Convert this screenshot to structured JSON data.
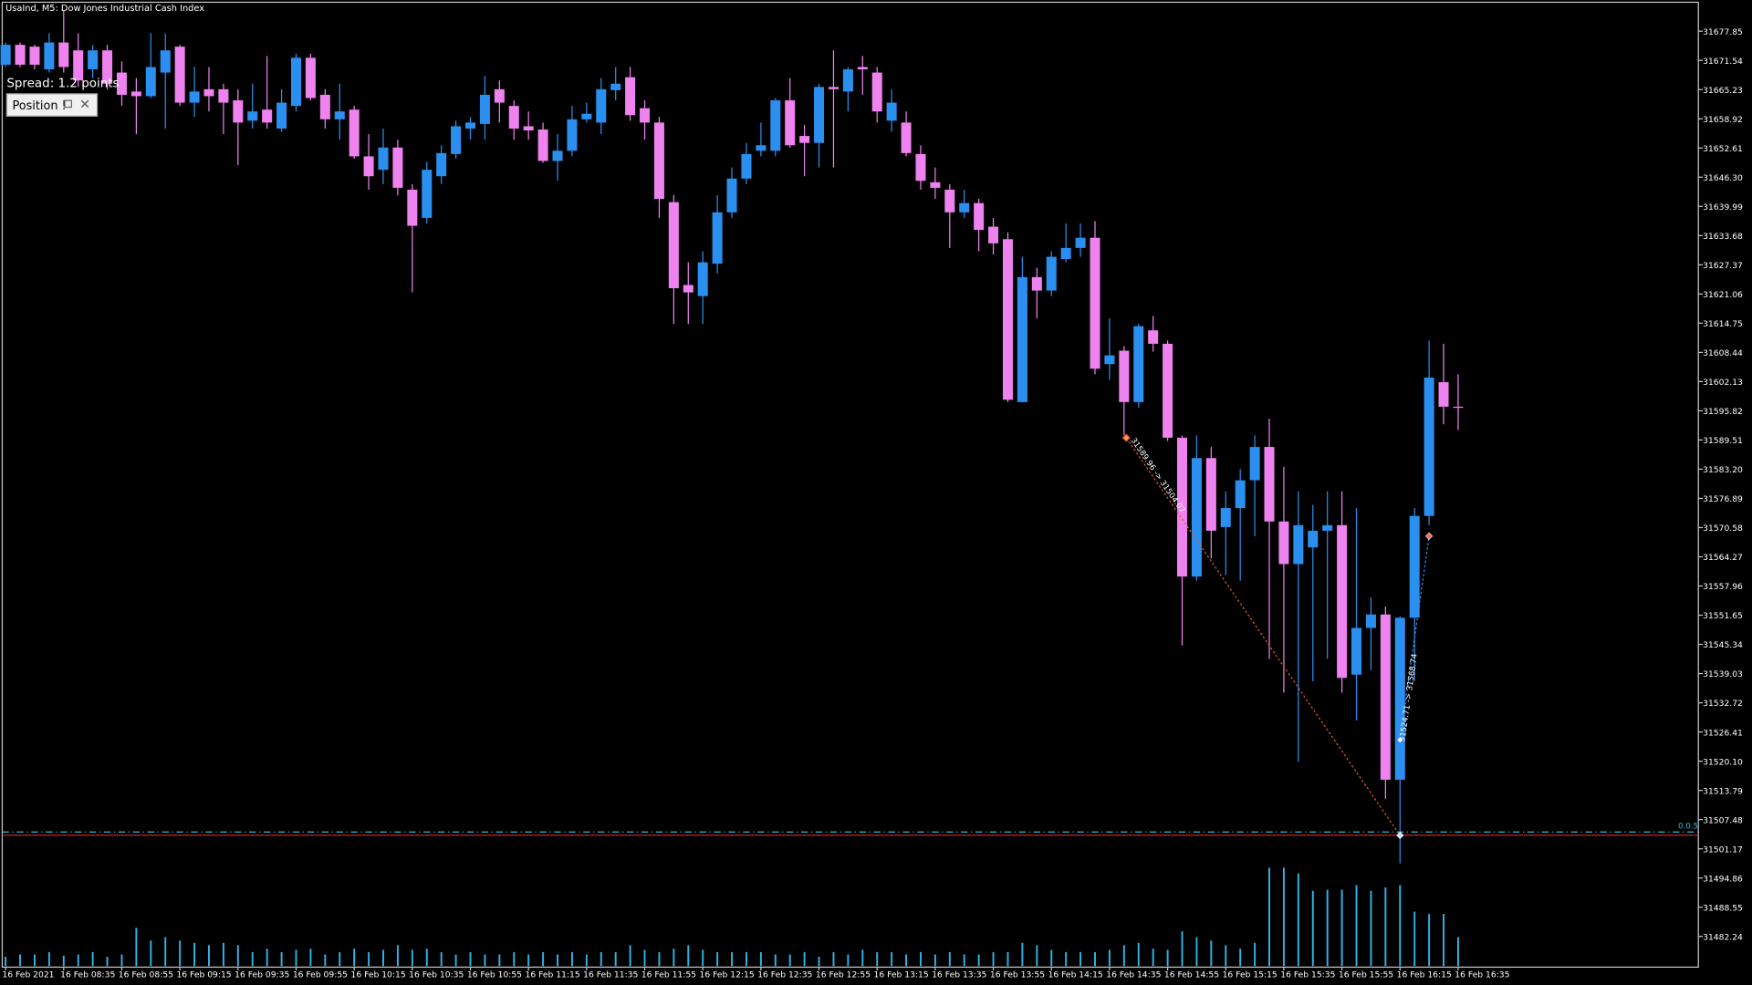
{
  "chart_data": {
    "type": "candlestick",
    "title": "UsaInd, M5:  Dow Jones Industrial Cash Index",
    "spread": "Spread: 1.2 points",
    "position_button": "Position !",
    "bull_color": "#2b8ff0",
    "bear_color": "#ee82ee",
    "volume_color": "#2fb2e6",
    "categories": [
      "16 Feb 2021",
      null,
      null,
      null,
      "16 Feb 08:35",
      null,
      null,
      null,
      "16 Feb 08:55",
      null,
      null,
      null,
      "16 Feb 09:15",
      null,
      null,
      null,
      "16 Feb 09:35",
      null,
      null,
      null,
      "16 Feb 09:55",
      null,
      null,
      null,
      "16 Feb 10:15",
      null,
      null,
      null,
      "16 Feb 10:35",
      null,
      null,
      null,
      "16 Feb 10:55",
      null,
      null,
      null,
      "16 Feb 11:15",
      null,
      null,
      null,
      "16 Feb 11:35",
      null,
      null,
      null,
      "16 Feb 11:55",
      null,
      null,
      null,
      "16 Feb 12:15",
      null,
      null,
      null,
      "16 Feb 12:35",
      null,
      null,
      null,
      "16 Feb 12:55",
      null,
      null,
      null,
      "16 Feb 13:15",
      null,
      null,
      null,
      "16 Feb 13:35",
      null,
      null,
      null,
      "16 Feb 13:55",
      null,
      null,
      null,
      "16 Feb 14:15",
      null,
      null,
      null,
      "16 Feb 14:35",
      null,
      null,
      null,
      "16 Feb 14:55",
      null,
      null,
      null,
      "16 Feb 15:15",
      null,
      null,
      null,
      "16 Feb 15:35",
      null,
      null,
      null,
      "16 Feb 15:55",
      null,
      null,
      null,
      "16 Feb 16:15",
      null,
      null,
      null,
      "16 Feb 16:35"
    ],
    "open": [
      31670.6,
      31674.9,
      31674.5,
      31669.6,
      31675.4,
      31673.7,
      31669.6,
      31673.7,
      31668.9,
      31664.8,
      31663.8,
      31668.9,
      31674.5,
      31662.4,
      31665.3,
      31665.3,
      31662.9,
      31658.5,
      31660.9,
      31656.8,
      31661.7,
      31672.1,
      31664.1,
      31658.8,
      31660.9,
      31650.8,
      31647.9,
      31652.7,
      31643.6,
      31637.5,
      31646.5,
      31651.3,
      31656.8,
      31657.8,
      31665.3,
      31661.7,
      31657.3,
      31656.6,
      31649.8,
      31652.0,
      31658.8,
      31658.1,
      31665.1,
      31667.9,
      31661.2,
      31658.1,
      31640.9,
      31623.0,
      31620.6,
      31627.6,
      31638.7,
      31646.0,
      31652.0,
      31652.0,
      31662.9,
      31655.2,
      31653.7,
      31665.8,
      31664.8,
      31670.1,
      31668.9,
      31658.5,
      31658.1,
      31651.3,
      31645.2,
      31643.6,
      31638.7,
      31640.7,
      31635.6,
      31632.9,
      31597.7,
      31624.7,
      31621.8,
      31628.6,
      31631.0,
      31633.2,
      31605.9,
      31608.8,
      31597.7,
      31613.2,
      31610.3,
      31590.0,
      31560.0,
      31585.6,
      31570.7,
      31574.8,
      31580.8,
      31588.0,
      31571.9,
      31562.7,
      31566.3,
      31569.9,
      31571.1,
      31538.8,
      31548.9,
      31551.8,
      31516.1,
      31551.1,
      31573.1,
      31602.0,
      31596.7
    ],
    "high": [
      31675.4,
      31675.4,
      31674.9,
      31677.4,
      31682.2,
      31677.4,
      31674.9,
      31674.9,
      31671.3,
      31667.7,
      31677.4,
      31677.4,
      31674.9,
      31670.1,
      31670.1,
      31666.5,
      31665.3,
      31666.5,
      31672.5,
      31665.3,
      31673.0,
      31673.0,
      31665.3,
      31666.5,
      31661.7,
      31655.6,
      31656.8,
      31654.4,
      31644.8,
      31649.6,
      31653.2,
      31658.5,
      31659.3,
      31668.2,
      31667.2,
      31662.9,
      31660.5,
      31658.1,
      31655.6,
      31661.7,
      31662.4,
      31667.7,
      31670.1,
      31670.1,
      31662.9,
      31659.3,
      31642.4,
      31627.9,
      31630.3,
      31642.4,
      31648.4,
      31653.7,
      31658.1,
      31663.4,
      31667.7,
      31657.6,
      31666.5,
      31673.7,
      31670.1,
      31672.5,
      31670.1,
      31665.3,
      31660.5,
      31653.2,
      31648.4,
      31644.8,
      31643.6,
      31641.6,
      31637.5,
      31634.4,
      31629.1,
      31626.7,
      31630.3,
      31636.3,
      31636.3,
      31636.8,
      31615.8,
      31609.8,
      31614.6,
      31616.3,
      31611.0,
      31590.5,
      31590.5,
      31588.0,
      31578.4,
      31583.2,
      31590.5,
      31594.1,
      31583.7,
      31578.4,
      31575.5,
      31578.4,
      31578.4,
      31574.8,
      31555.5,
      31553.5,
      31551.4,
      31574.8,
      31611.0,
      31610.3,
      31603.7
    ],
    "low": [
      31670.1,
      31670.1,
      31669.6,
      31668.9,
      31668.9,
      31665.8,
      31667.7,
      31665.3,
      31661.7,
      31655.6,
      31663.4,
      31656.8,
      31661.7,
      31659.3,
      31660.5,
      31655.6,
      31648.9,
      31656.8,
      31656.8,
      31656.1,
      31660.5,
      31662.9,
      31656.8,
      31654.4,
      31650.3,
      31643.6,
      31644.8,
      31642.4,
      31621.4,
      31636.3,
      31644.8,
      31650.3,
      31654.4,
      31654.4,
      31658.1,
      31654.4,
      31654.4,
      31649.4,
      31645.5,
      31650.8,
      31658.1,
      31655.6,
      31662.9,
      31658.5,
      31654.4,
      31637.5,
      31614.6,
      31614.6,
      31614.6,
      31625.5,
      31637.5,
      31644.8,
      31650.8,
      31650.8,
      31652.7,
      31646.5,
      31648.4,
      31648.4,
      31660.5,
      31664.1,
      31658.1,
      31656.1,
      31650.8,
      31643.6,
      31641.6,
      31631.0,
      31637.5,
      31630.3,
      31629.6,
      31597.7,
      31597.7,
      31615.8,
      31620.6,
      31627.9,
      31629.1,
      31603.7,
      31602.5,
      31590.5,
      31596.5,
      31608.6,
      31589.3,
      31545.1,
      31559.1,
      31563.9,
      31560.3,
      31559.1,
      31568.7,
      31542.2,
      31534.9,
      31520.0,
      31537.4,
      31542.2,
      31534.9,
      31528.9,
      31539.8,
      31512.0,
      31498.0,
      31537.4,
      31571.1,
      31592.9,
      31591.7
    ],
    "close": [
      31674.9,
      31670.6,
      31670.6,
      31675.4,
      31670.1,
      31667.2,
      31673.7,
      31666.5,
      31664.1,
      31663.8,
      31670.1,
      31673.7,
      31662.4,
      31664.8,
      31663.8,
      31662.4,
      31658.1,
      31660.5,
      31658.1,
      31662.4,
      31672.1,
      31663.4,
      31658.8,
      31660.5,
      31650.8,
      31646.5,
      31652.7,
      31644.0,
      31635.8,
      31647.9,
      31651.5,
      31657.3,
      31658.1,
      31664.1,
      31662.4,
      31656.8,
      31656.4,
      31649.8,
      31652.0,
      31658.8,
      31660.0,
      31665.3,
      31666.5,
      31659.7,
      31658.1,
      31641.6,
      31622.3,
      31621.4,
      31627.9,
      31638.7,
      31646.0,
      31651.3,
      31653.2,
      31662.9,
      31653.2,
      31653.7,
      31665.8,
      31665.3,
      31669.6,
      31669.6,
      31660.5,
      31662.4,
      31651.5,
      31645.5,
      31644.0,
      31638.7,
      31640.7,
      31634.9,
      31632.0,
      31598.2,
      31624.7,
      31621.8,
      31629.1,
      31631.0,
      31633.2,
      31604.9,
      31607.8,
      31597.7,
      31614.1,
      31610.3,
      31590.0,
      31560.0,
      31585.6,
      31569.9,
      31574.8,
      31580.8,
      31588.0,
      31571.9,
      31562.7,
      31571.1,
      31569.9,
      31571.1,
      31538.1,
      31548.9,
      31551.8,
      31516.1,
      31551.1,
      31573.1,
      31603.0,
      31596.7,
      31596.5
    ],
    "volume": [
      8,
      10,
      10,
      12,
      9,
      10,
      12,
      8,
      10,
      33,
      22,
      25,
      22,
      20,
      18,
      20,
      18,
      12,
      15,
      12,
      14,
      15,
      10,
      12,
      15,
      12,
      14,
      18,
      14,
      15,
      12,
      10,
      12,
      10,
      10,
      12,
      10,
      12,
      10,
      12,
      10,
      12,
      12,
      18,
      14,
      12,
      15,
      18,
      14,
      12,
      12,
      12,
      12,
      10,
      10,
      12,
      8,
      12,
      10,
      14,
      12,
      12,
      10,
      12,
      10,
      12,
      10,
      10,
      12,
      12,
      20,
      18,
      14,
      12,
      12,
      12,
      14,
      18,
      20,
      15,
      14,
      30,
      25,
      22,
      18,
      15,
      20,
      85,
      85,
      80,
      65,
      66,
      66,
      70,
      65,
      68,
      70,
      47,
      45,
      45,
      25
    ],
    "ylim": [
      31475.6,
      31684.1
    ],
    "yticks": [
      31677.85,
      31671.54,
      31665.23,
      31658.92,
      31652.61,
      {
        "value": 31646.3,
        "label": "31646.30"
      },
      31639.99,
      31633.68,
      31627.37,
      31621.06,
      31614.75,
      31608.44,
      31602.13,
      31595.82,
      31589.51,
      {
        "value": 31583.2,
        "label": "31583.20"
      },
      31576.89,
      31570.58,
      31564.27,
      31557.96,
      31551.65,
      31545.34,
      31539.03,
      31532.72,
      31526.41,
      {
        "value": 31520.1,
        "label": "31520.10"
      },
      31513.79,
      31507.48,
      31501.17,
      31494.86,
      31488.55,
      31482.24
    ],
    "lines": [
      {
        "price": 31504.8,
        "color": "#20c0d0",
        "label": "0.0.5"
      },
      {
        "price": 31504.1,
        "color": "#d02020"
      }
    ],
    "trades": [
      {
        "entry": 31589.96,
        "exit": 31504.07,
        "color": "#e05a30",
        "label": "31589.96 -> 31504.07"
      },
      {
        "entry": 31524.71,
        "exit": 31568.74,
        "color": "#3a8ff0",
        "label": "31524.71 -> 31568.74"
      }
    ]
  }
}
